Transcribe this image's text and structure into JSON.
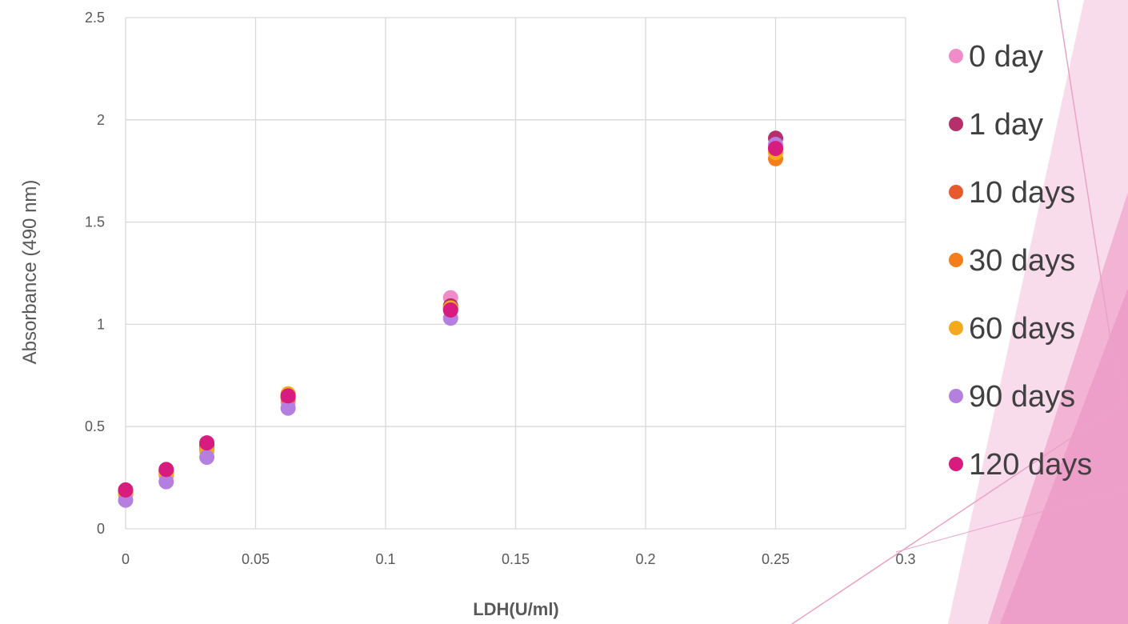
{
  "chart_data": {
    "type": "scatter",
    "title": "",
    "xlabel": "LDH(U/ml)",
    "ylabel": "Absorbance (490 nm)",
    "xlim": [
      0,
      0.3
    ],
    "ylim": [
      0,
      2.5
    ],
    "x_ticks": [
      "0",
      "0.05",
      "0.1",
      "0.15",
      "0.2",
      "0.25",
      "0.3"
    ],
    "y_ticks": [
      "0",
      "0.5",
      "1",
      "1.5",
      "2",
      "2.5"
    ],
    "grid": true,
    "legend_position": "right",
    "x": [
      0,
      0.015625,
      0.03125,
      0.0625,
      0.125,
      0.25
    ],
    "series": [
      {
        "name": "0 day",
        "color": "#F08CC8",
        "values": [
          0.17,
          0.26,
          0.39,
          0.62,
          1.13,
          1.87
        ]
      },
      {
        "name": "1 day",
        "color": "#B5306A",
        "values": [
          0.18,
          0.28,
          0.41,
          0.65,
          1.09,
          1.91
        ]
      },
      {
        "name": "10 days",
        "color": "#E85A2E",
        "values": [
          0.18,
          0.28,
          0.4,
          0.64,
          1.08,
          1.86
        ]
      },
      {
        "name": "30 days",
        "color": "#F47F1A",
        "values": [
          0.17,
          0.27,
          0.39,
          0.65,
          1.07,
          1.81
        ]
      },
      {
        "name": "60 days",
        "color": "#F5A91D",
        "values": [
          0.17,
          0.27,
          0.38,
          0.66,
          1.08,
          1.84
        ]
      },
      {
        "name": "90 days",
        "color": "#B57FE0",
        "values": [
          0.14,
          0.23,
          0.35,
          0.59,
          1.03,
          1.88
        ]
      },
      {
        "name": "120 days",
        "color": "#D81B7F",
        "values": [
          0.19,
          0.29,
          0.42,
          0.65,
          1.07,
          1.86
        ]
      }
    ]
  }
}
